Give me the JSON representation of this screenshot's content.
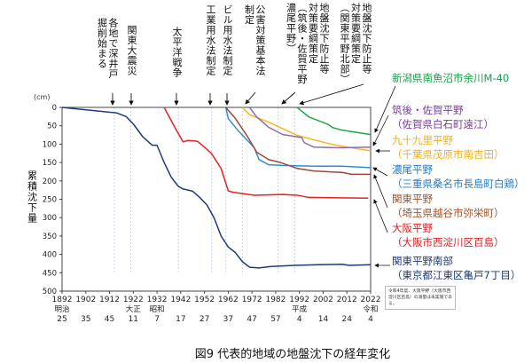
{
  "chart_data": {
    "type": "line",
    "title": "図9 代表的地域の地盤沈下の経年変化",
    "ylabel": "累積沈下量",
    "yunit": "(cm)",
    "xlim": [
      1892,
      2022
    ],
    "ylim": [
      0,
      500
    ],
    "y_inverted": true,
    "yticks": [
      0,
      50,
      100,
      150,
      200,
      250,
      300,
      350,
      400,
      450,
      500
    ],
    "xticks": [
      1892,
      1902,
      1912,
      1922,
      1932,
      1942,
      1952,
      1962,
      1972,
      1982,
      1992,
      2002,
      2012,
      2022
    ],
    "era_ticks": [
      {
        "era": "明治",
        "year": "25"
      },
      {
        "era": "",
        "year": "35"
      },
      {
        "era": "",
        "year": "45"
      },
      {
        "era": "大正",
        "year": "11"
      },
      {
        "era": "昭和",
        "year": "7"
      },
      {
        "era": "",
        "year": "17"
      },
      {
        "era": "",
        "year": "27"
      },
      {
        "era": "",
        "year": "37"
      },
      {
        "era": "",
        "year": "47"
      },
      {
        "era": "",
        "year": "57"
      },
      {
        "era": "平成",
        "year": "4"
      },
      {
        "era": "",
        "year": "14"
      },
      {
        "era": "",
        "year": "24"
      },
      {
        "era": "令和",
        "year": "4"
      }
    ],
    "event_marker_years": [
      1914,
      1921,
      1941,
      1955,
      1961,
      1968,
      1983,
      1990
    ],
    "events": [
      {
        "columns": [
          "各地で深井戸",
          "掘削始まる"
        ]
      },
      {
        "columns": [
          "関東大震災"
        ]
      },
      {
        "columns": [
          "太平洋戦争"
        ]
      },
      {
        "columns": [
          "工業用水法制定"
        ]
      },
      {
        "columns": [
          "ビル用水法制定"
        ]
      },
      {
        "columns": [
          "公害対策基本法",
          "制定"
        ]
      },
      {
        "columns": [
          "地盤沈下防止等",
          "対策要綱策定",
          "（筑後・佐賀平野",
          "濃尾平野）"
        ]
      },
      {
        "columns": [
          "地盤沈下防止等",
          "対策要綱策定",
          "（関東平野北部）"
        ]
      }
    ],
    "series": [
      {
        "name": "関東平野南部",
        "sub": "（東京都江東区亀戸7丁目）",
        "color": "#1f3a7a",
        "x": [
          1892,
          1915,
          1919,
          1922,
          1926,
          1930,
          1932,
          1935,
          1938,
          1941,
          1943,
          1947,
          1950,
          1953,
          1956,
          1959,
          1962,
          1965,
          1968,
          1971,
          1975,
          1980,
          1990,
          2000,
          2010,
          2013,
          2022
        ],
        "y": [
          0,
          15,
          25,
          45,
          80,
          103,
          103,
          150,
          190,
          215,
          222,
          228,
          245,
          265,
          300,
          350,
          380,
          395,
          420,
          435,
          437,
          433,
          430,
          428,
          427,
          430,
          428
        ]
      },
      {
        "name": "大阪平野",
        "sub": "（大阪市西淀川区百島）",
        "color": "#e8201f",
        "x": [
          1935,
          1940,
          1943,
          1945,
          1949,
          1953,
          1955,
          1959,
          1962,
          1964,
          1973,
          1985,
          1991,
          1996,
          2021
        ],
        "y": [
          0,
          60,
          94,
          90,
          92,
          114,
          126,
          166,
          227,
          231,
          239,
          237,
          239,
          245,
          247
        ]
      },
      {
        "name": "濃尾平野",
        "sub": "（三重県桑名市長島町白鶏）",
        "color": "#2f8fd0",
        "x": [
          1961,
          1962,
          1966,
          1973,
          1975,
          1979,
          1985,
          1998,
          2010,
          2022
        ],
        "y": [
          0,
          30,
          62,
          110,
          142,
          156,
          158,
          160,
          160,
          164
        ]
      },
      {
        "name": "関東平野",
        "sub": "（埼玉県越谷市弥栄町）",
        "color": "#9a4a3a",
        "x": [
          1961,
          1965,
          1970,
          1974,
          1979,
          1984,
          1991,
          1998,
          2010,
          2014,
          2022
        ],
        "y": [
          0,
          30,
          78,
          122,
          142,
          150,
          166,
          173,
          177,
          182,
          182
        ]
      },
      {
        "name": "九十九里平野",
        "sub": "（千葉県茂原市南吉田）",
        "color": "#f5b81c",
        "x": [
          1968,
          1971,
          1979,
          1991,
          2004,
          2010,
          2022
        ],
        "y": [
          0,
          20,
          40,
          76,
          98,
          106,
          118
        ]
      },
      {
        "name": "筑後・佐賀平野",
        "sub": "（佐賀県白石町遠江）",
        "color": "#8e6bb0",
        "x": [
          1971,
          1974,
          1979,
          1985,
          1993,
          1994,
          1998,
          2010,
          2022
        ],
        "y": [
          0,
          26,
          54,
          74,
          82,
          96,
          108,
          110,
          108
        ]
      },
      {
        "name": "新潟県南魚沼市余川M-40",
        "sub": "",
        "color": "#20a848",
        "x": [
          1991,
          1996,
          2004,
          2006,
          2010,
          2022
        ],
        "y": [
          0,
          26,
          46,
          55,
          62,
          74
        ]
      }
    ],
    "note": "令和4年度、大阪平野（大阪市西淀川区百島）の測量は未実施である。"
  }
}
